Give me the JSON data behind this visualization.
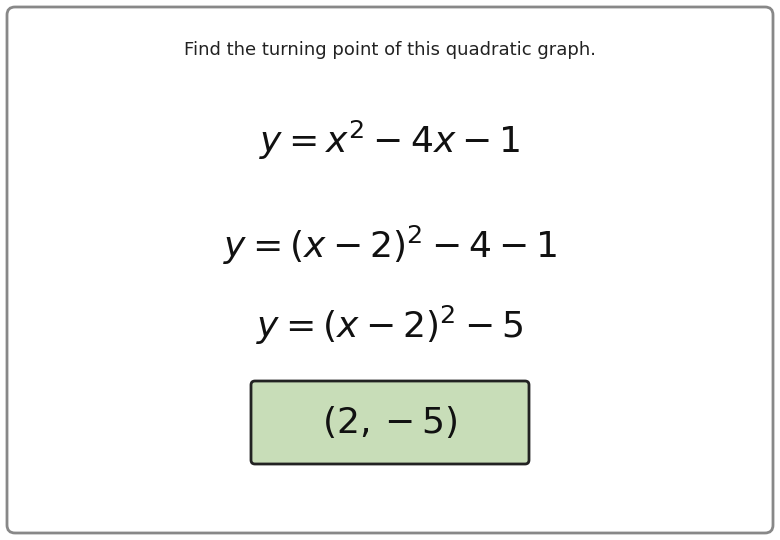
{
  "title": "Find the turning point of this quadratic graph.",
  "title_fontsize": 13,
  "line1": "$y = x^2 - 4x - 1$",
  "line2": "$y = (x - 2)^2 - 4 - 1$",
  "line3": "$y = (x - 2)^2 - 5$",
  "answer": "$(2, -5)$",
  "math_fontsize": 26,
  "answer_fontsize": 26,
  "bg_color": "#ffffff",
  "border_color": "#888888",
  "box_facecolor": "#c8ddb8",
  "box_edgecolor": "#222222",
  "title_color": "#222222",
  "math_color": "#111111"
}
